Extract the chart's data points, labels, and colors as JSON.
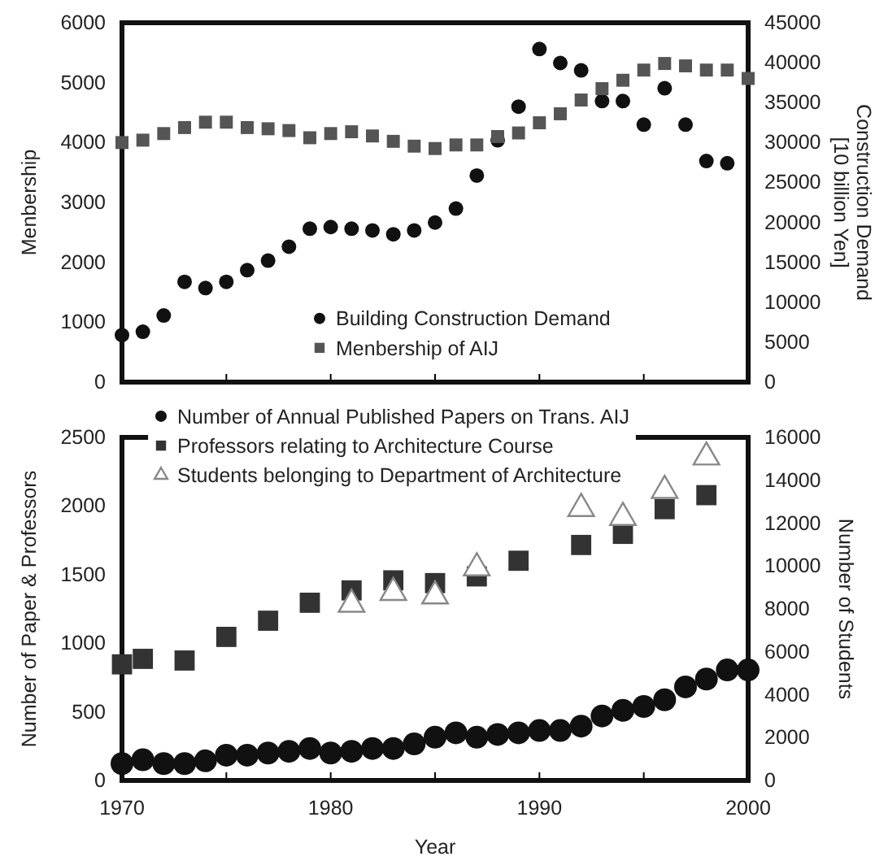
{
  "chart_data": [
    {
      "type": "scatter",
      "ylabel": "Menbership",
      "y2label": "Construction Demand\n[10 billion Yen]",
      "x": [
        1970,
        1971,
        1972,
        1973,
        1974,
        1975,
        1976,
        1977,
        1978,
        1979,
        1980,
        1981,
        1982,
        1983,
        1984,
        1985,
        1986,
        1987,
        1988,
        1989,
        1990,
        1991,
        1992,
        1993,
        1994,
        1995,
        1996,
        1997,
        1998,
        1999,
        2000
      ],
      "xlim": [
        1970,
        2000
      ],
      "xticks": [
        1970,
        {
          "value": 1975,
          "label": null
        },
        1980,
        {
          "value": 1985,
          "label": null
        },
        1990,
        {
          "value": 1995,
          "label": null
        },
        2000
      ],
      "ylim": [
        0,
        6000
      ],
      "yticks": [
        0,
        1000,
        2000,
        3000,
        4000,
        5000,
        6000
      ],
      "y2lim": [
        0,
        45000
      ],
      "y2ticks": [
        0,
        5000,
        10000,
        15000,
        20000,
        25000,
        30000,
        35000,
        40000,
        45000
      ],
      "tick_labels": "y",
      "grid": false,
      "legend": "bottom",
      "series": [
        {
          "name": "Building Construction Demand",
          "color": "#111111",
          "marker": "circle",
          "axis": "y2",
          "values": [
            5890,
            6310,
            8340,
            12550,
            11780,
            12550,
            14020,
            15210,
            16960,
            19210,
            19420,
            19210,
            19000,
            18510,
            19000,
            19980,
            21730,
            25870,
            30280,
            34490,
            41710,
            39960,
            39040,
            35190,
            35190,
            32240,
            36800,
            32240,
            27690,
            27410,
            null
          ]
        },
        {
          "name": "Menbership of AIJ",
          "color": "#555555",
          "marker": "square",
          "values": [
            4000,
            4040,
            4150,
            4250,
            4340,
            4340,
            4250,
            4230,
            4200,
            4080,
            4150,
            4180,
            4110,
            4020,
            3940,
            3900,
            3960,
            3960,
            4100,
            4160,
            4330,
            4480,
            4710,
            4900,
            5040,
            5210,
            5320,
            5280,
            5210,
            5210,
            5070
          ]
        }
      ]
    },
    {
      "type": "scatter",
      "xlabel": "Year",
      "ylabel": "Number of Paper & Professors",
      "y2label": "Number of Students",
      "xlim": [
        1970,
        2000
      ],
      "xticks": [
        1970,
        {
          "value": 1975,
          "label": null
        },
        1980,
        {
          "value": 1985,
          "label": null
        },
        1990,
        {
          "value": 1995,
          "label": null
        },
        2000
      ],
      "ylim": [
        0,
        2500
      ],
      "yticks": [
        0,
        500,
        1000,
        1500,
        2000,
        2500
      ],
      "y2lim": [
        0,
        16000
      ],
      "y2ticks": [
        0,
        2000,
        4000,
        6000,
        8000,
        10000,
        12000,
        14000,
        16000
      ],
      "grid": false,
      "legend": "top left",
      "series": [
        {
          "name": "Number of Annual Published Papers on Trans. AIJ",
          "color": "#111111",
          "marker": "circle",
          "x": [
            1970,
            1971,
            1972,
            1973,
            1974,
            1975,
            1976,
            1977,
            1978,
            1979,
            1980,
            1981,
            1982,
            1983,
            1984,
            1985,
            1986,
            1987,
            1988,
            1989,
            1990,
            1991,
            1992,
            1993,
            1994,
            1995,
            1996,
            1997,
            1998,
            1999,
            2000
          ],
          "values": [
            123,
            151,
            123,
            123,
            143,
            184,
            184,
            200,
            212,
            233,
            200,
            212,
            233,
            233,
            266,
            315,
            347,
            315,
            335,
            347,
            364,
            364,
            396,
            470,
            511,
            539,
            588,
            682,
            739,
            805,
            805
          ]
        },
        {
          "name": "Professors relating to Architecture Course",
          "color": "#333333",
          "marker": "square",
          "x": [
            1970,
            1971,
            1973,
            1975,
            1977,
            1979,
            1981,
            1983,
            1985,
            1987,
            1989,
            1992,
            1994,
            1996,
            1998
          ],
          "values": [
            846,
            886,
            874,
            1046,
            1164,
            1295,
            1385,
            1458,
            1438,
            1487,
            1601,
            1716,
            1797,
            1977,
            2079
          ]
        },
        {
          "name": "Students belonging to Department of Architecture",
          "color": "#888888",
          "marker": "triangle",
          "axis": "y2",
          "x": [
            1981,
            1983,
            1985,
            1987,
            1992,
            1994,
            1996,
            1998
          ],
          "values": [
            8210,
            8760,
            8600,
            9910,
            12680,
            12260,
            13520,
            15080
          ]
        }
      ]
    }
  ]
}
